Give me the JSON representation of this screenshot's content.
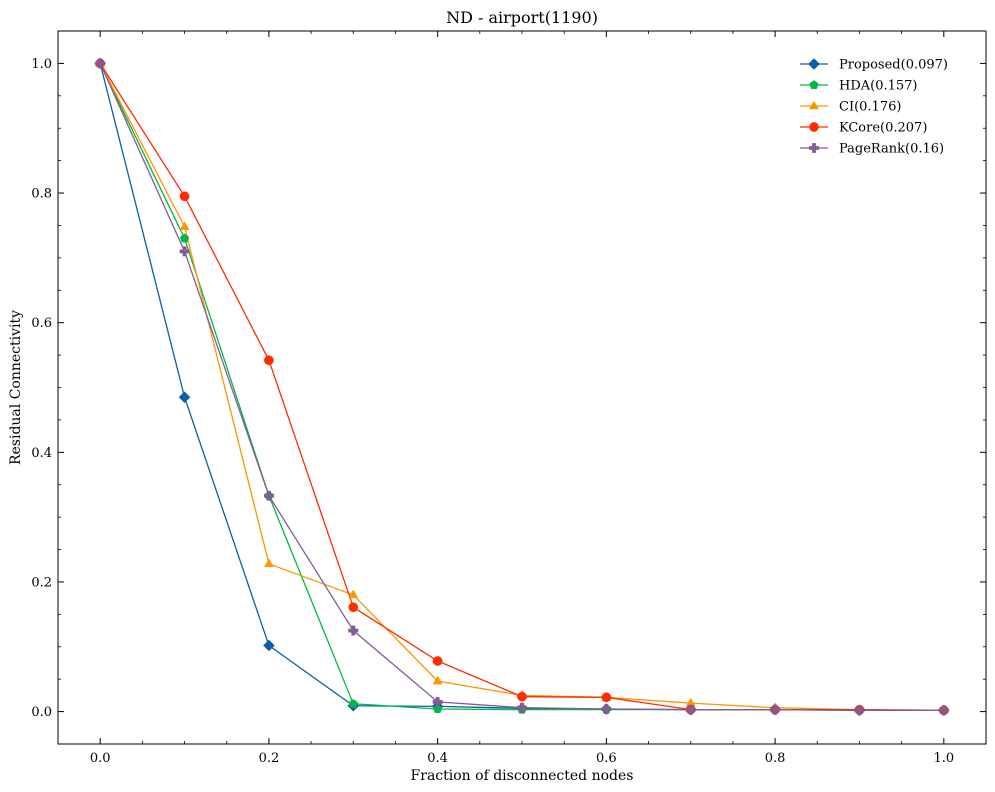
{
  "chart_data": {
    "type": "line",
    "title": "ND - airport(1190)",
    "xlabel": "Fraction of disconnected nodes",
    "ylabel": "Residual Connectivity",
    "xlim": [
      -0.05,
      1.05
    ],
    "ylim": [
      -0.05,
      1.05
    ],
    "xticks": [
      0.0,
      0.2,
      0.4,
      0.6,
      0.8,
      1.0
    ],
    "xtick_labels": [
      "0.0",
      "0.2",
      "0.4",
      "0.6",
      "0.8",
      "1.0"
    ],
    "yticks": [
      0.0,
      0.2,
      0.4,
      0.6,
      0.8,
      1.0
    ],
    "ytick_labels": [
      "0.0",
      "0.2",
      "0.4",
      "0.6",
      "0.8",
      "1.0"
    ],
    "grid": false,
    "legend_position": "top-right",
    "x": [
      0.0,
      0.1,
      0.2,
      0.3,
      0.4,
      0.5,
      0.6,
      0.7,
      0.8,
      0.9,
      1.0
    ],
    "series": [
      {
        "name": "Proposed(0.097)",
        "color": "#0c5da5",
        "marker": "diamond",
        "values": [
          1.0,
          0.485,
          0.102,
          0.009,
          0.008,
          0.005,
          0.004,
          0.003,
          0.003,
          0.002,
          0.002
        ]
      },
      {
        "name": "HDA(0.157)",
        "color": "#00b945",
        "marker": "pentagon",
        "values": [
          1.0,
          0.73,
          0.333,
          0.012,
          0.004,
          0.003,
          0.003,
          0.003,
          0.003,
          0.002,
          0.002
        ]
      },
      {
        "name": "CI(0.176)",
        "color": "#ff9500",
        "marker": "triangle",
        "values": [
          1.0,
          0.748,
          0.228,
          0.18,
          0.047,
          0.025,
          0.022,
          0.013,
          0.006,
          0.003,
          0.002
        ]
      },
      {
        "name": "KCore(0.207)",
        "color": "#ff2c00",
        "marker": "circle",
        "values": [
          1.0,
          0.795,
          0.542,
          0.161,
          0.078,
          0.023,
          0.022,
          0.003,
          0.003,
          0.003,
          0.002
        ]
      },
      {
        "name": "PageRank(0.16)",
        "color": "#845b97",
        "marker": "plus",
        "values": [
          1.0,
          0.71,
          0.333,
          0.125,
          0.015,
          0.006,
          0.004,
          0.003,
          0.003,
          0.002,
          0.002
        ]
      }
    ]
  }
}
